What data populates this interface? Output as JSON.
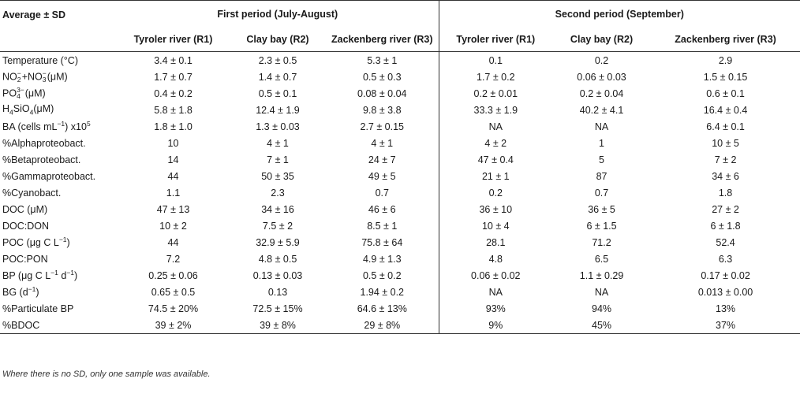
{
  "header": {
    "stat_label": "Average ± SD",
    "first_period": "First period (July-August)",
    "second_period": "Second period (September)",
    "sites": [
      "Tyroler river (R1)",
      "Clay bay (R2)",
      "Zackenberg river (R3)"
    ]
  },
  "rows": [
    {
      "label": "Temperature (°C)",
      "values": [
        "3.4 ± 0.1",
        "2.3 ± 0.5",
        "5.3 ± 1",
        "0.1",
        "0.2",
        "2.9"
      ]
    },
    {
      "label": "NO2−+NO3−(μM)",
      "values": [
        "1.7 ± 0.7",
        "1.4 ± 0.7",
        "0.5 ± 0.3",
        "1.7 ± 0.2",
        "0.06 ± 0.03",
        "1.5 ± 0.15"
      ]
    },
    {
      "label": "PO43−(μM)",
      "values": [
        "0.4 ± 0.2",
        "0.5 ± 0.1",
        "0.08 ± 0.04",
        "0.2 ± 0.01",
        "0.2 ± 0.04",
        "0.6 ± 0.1"
      ]
    },
    {
      "label": "H4SiO4(μM)",
      "values": [
        "5.8 ± 1.8",
        "12.4 ± 1.9",
        "9.8 ± 3.8",
        "33.3 ± 1.9",
        "40.2 ± 4.1",
        "16.4 ± 0.4"
      ]
    },
    {
      "label": "BA (cells mL−1) x105",
      "values": [
        "1.8 ± 1.0",
        "1.3 ± 0.03",
        "2.7 ± 0.15",
        "NA",
        "NA",
        "6.4 ± 0.1"
      ]
    },
    {
      "label": "%Alphaproteobact.",
      "values": [
        "10",
        "4 ± 1",
        "4 ± 1",
        "4 ± 2",
        "1",
        "10 ± 5"
      ]
    },
    {
      "label": "%Betaproteobact.",
      "values": [
        "14",
        "7 ± 1",
        "24 ± 7",
        "47 ± 0.4",
        "5",
        "7 ± 2"
      ]
    },
    {
      "label": "%Gammaproteobact.",
      "values": [
        "44",
        "50 ± 35",
        "49 ± 5",
        "21 ± 1",
        "87",
        "34 ± 6"
      ]
    },
    {
      "label": "%Cyanobact.",
      "values": [
        "1.1",
        "2.3",
        "0.7",
        "0.2",
        "0.7",
        "1.8"
      ]
    },
    {
      "label": "DOC (μM)",
      "values": [
        "47 ± 13",
        "34 ± 16",
        "46 ± 6",
        "36 ± 10",
        "36 ± 5",
        "27 ± 2"
      ]
    },
    {
      "label": "DOC:DON",
      "values": [
        "10 ± 2",
        "7.5 ± 2",
        "8.5 ± 1",
        "10 ± 4",
        "6 ± 1.5",
        "6 ± 1.8"
      ]
    },
    {
      "label": "POC (μg C L−1)",
      "values": [
        "44",
        "32.9 ± 5.9",
        "75.8 ± 64",
        "28.1",
        "71.2",
        "52.4"
      ]
    },
    {
      "label": "POC:PON",
      "values": [
        "7.2",
        "4.8 ± 0.5",
        "4.9 ± 1.3",
        "4.8",
        "6.5",
        "6.3"
      ]
    },
    {
      "label": "BP (μg C L−1 d−1)",
      "values": [
        "0.25 ± 0.06",
        "0.13 ± 0.03",
        "0.5 ± 0.2",
        "0.06 ± 0.02",
        "1.1 ± 0.29",
        "0.17 ± 0.02"
      ]
    },
    {
      "label": "BG (d−1)",
      "values": [
        "0.65 ± 0.5",
        "0.13",
        "1.94 ± 0.2",
        "NA",
        "NA",
        "0.013 ± 0.00"
      ]
    },
    {
      "label": "%Particulate BP",
      "values": [
        "74.5 ± 20%",
        "72.5 ± 15%",
        "64.6 ± 13%",
        "93%",
        "94%",
        "13%"
      ]
    },
    {
      "label": "%BDOC",
      "values": [
        "39 ± 2%",
        "39 ± 8%",
        "29 ± 8%",
        "9%",
        "45%",
        "37%"
      ]
    }
  ],
  "footnote": "Where there is no SD, only one sample was available."
}
